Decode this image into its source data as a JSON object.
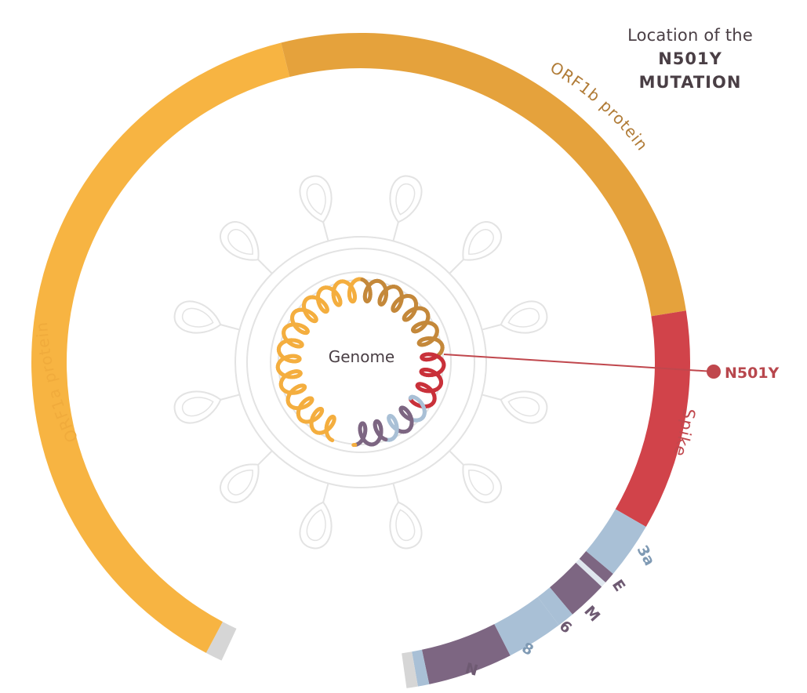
{
  "title": {
    "line1": "Location of the",
    "line2": "N501Y",
    "line3": "MUTATION"
  },
  "center_label": "Genome",
  "mutation": {
    "label": "N501Y",
    "color": "#c0474d"
  },
  "segments": [
    {
      "key": "orf1a",
      "label": "ORF1a protein",
      "color": "#f7b442",
      "label_color": "#f0ab3c"
    },
    {
      "key": "orf1b",
      "label": "ORF1b protein",
      "color": "#e5a23c",
      "label_color": "#b07b36"
    },
    {
      "key": "spike",
      "label": "Spike",
      "color": "#d1434a",
      "label_color": "#c0474d"
    },
    {
      "key": "3a",
      "label": "3a",
      "color": "#a9c0d6",
      "label_color": "#7f9ab4"
    },
    {
      "key": "e",
      "label": "E",
      "color": "#a9c0d6",
      "label_color": "#6e5a72"
    },
    {
      "key": "m",
      "label": "M",
      "color": "#7d6682",
      "label_color": "#6e5a72"
    },
    {
      "key": "6",
      "label": "6",
      "color": "#7d6682",
      "label_color": "#6e5a72"
    },
    {
      "key": "8",
      "label": "8",
      "color": "#a9c0d6",
      "label_color": "#7f9ab4"
    },
    {
      "key": "n",
      "label": "N",
      "color": "#7d6682",
      "label_color": "#6e5a72"
    }
  ],
  "colors": {
    "virus_outline": "#e2e2e2",
    "end_cap": "#d9d9d9",
    "text_dark": "#4a3f45"
  }
}
